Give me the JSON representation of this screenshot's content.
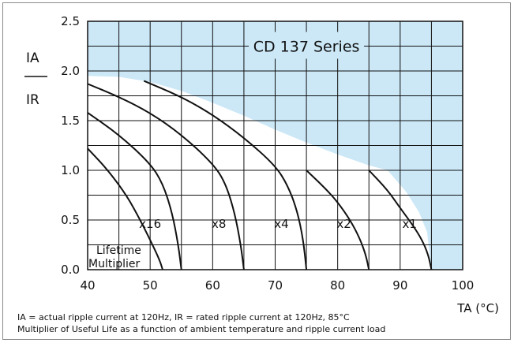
{
  "chart_data": {
    "type": "line",
    "title": "CD 137 Series",
    "ylabel": {
      "top": "IA",
      "bottom": "IR"
    },
    "xlabel": "TA (°C)",
    "xlim": [
      40,
      100
    ],
    "ylim": [
      0.0,
      2.5
    ],
    "x_ticks": [
      "40",
      "50",
      "60",
      "70",
      "80",
      "90",
      "100"
    ],
    "y_ticks": [
      "0.0",
      "0.5",
      "1.0",
      "1.5",
      "2.0",
      "2.5"
    ],
    "grid": true,
    "shaded_region": {
      "description": "area above maximum allowable ripple",
      "color": "#cce8f7"
    },
    "boundary": [
      {
        "x": 40,
        "y": 1.95
      },
      {
        "x": 45,
        "y": 1.94
      },
      {
        "x": 50,
        "y": 1.89
      },
      {
        "x": 55,
        "y": 1.8
      },
      {
        "x": 60,
        "y": 1.68
      },
      {
        "x": 65,
        "y": 1.55
      },
      {
        "x": 70,
        "y": 1.41
      },
      {
        "x": 75,
        "y": 1.28
      },
      {
        "x": 80,
        "y": 1.16
      },
      {
        "x": 85,
        "y": 1.05
      },
      {
        "x": 88,
        "y": 1.0
      },
      {
        "x": 91,
        "y": 0.78
      },
      {
        "x": 93,
        "y": 0.58
      },
      {
        "x": 94.3,
        "y": 0.38
      },
      {
        "x": 95,
        "y": 0.0
      }
    ],
    "series": [
      {
        "name": "x1",
        "points": [
          {
            "x": 85,
            "y": 1.0
          },
          {
            "x": 88,
            "y": 0.8
          },
          {
            "x": 90,
            "y": 0.62
          },
          {
            "x": 92,
            "y": 0.45
          },
          {
            "x": 93.5,
            "y": 0.3
          },
          {
            "x": 94.5,
            "y": 0.15
          },
          {
            "x": 95,
            "y": 0.0
          }
        ]
      },
      {
        "name": "x2",
        "points": [
          {
            "x": 75,
            "y": 1.0
          },
          {
            "x": 78,
            "y": 0.82
          },
          {
            "x": 80,
            "y": 0.68
          },
          {
            "x": 82,
            "y": 0.5
          },
          {
            "x": 83.5,
            "y": 0.32
          },
          {
            "x": 84.5,
            "y": 0.15
          },
          {
            "x": 85,
            "y": 0.0
          }
        ]
      },
      {
        "name": "x4",
        "points": [
          {
            "x": 49,
            "y": 1.9
          },
          {
            "x": 55,
            "y": 1.74
          },
          {
            "x": 60,
            "y": 1.56
          },
          {
            "x": 65,
            "y": 1.33
          },
          {
            "x": 70,
            "y": 1.05
          },
          {
            "x": 72,
            "y": 0.85
          },
          {
            "x": 73.5,
            "y": 0.6
          },
          {
            "x": 74.5,
            "y": 0.3
          },
          {
            "x": 75,
            "y": 0.0
          }
        ]
      },
      {
        "name": "x8",
        "points": [
          {
            "x": 40,
            "y": 1.87
          },
          {
            "x": 45,
            "y": 1.74
          },
          {
            "x": 50,
            "y": 1.58
          },
          {
            "x": 55,
            "y": 1.36
          },
          {
            "x": 60,
            "y": 1.07
          },
          {
            "x": 62,
            "y": 0.88
          },
          {
            "x": 63.5,
            "y": 0.58
          },
          {
            "x": 64.5,
            "y": 0.25
          },
          {
            "x": 65,
            "y": 0.0
          }
        ]
      },
      {
        "name": "x16",
        "points": [
          {
            "x": 40,
            "y": 1.58
          },
          {
            "x": 45,
            "y": 1.36
          },
          {
            "x": 50,
            "y": 1.07
          },
          {
            "x": 52,
            "y": 0.87
          },
          {
            "x": 53.5,
            "y": 0.58
          },
          {
            "x": 54.5,
            "y": 0.25
          },
          {
            "x": 55,
            "y": 0.0
          }
        ]
      },
      {
        "name": "",
        "points": [
          {
            "x": 40,
            "y": 1.22
          },
          {
            "x": 43,
            "y": 1.02
          },
          {
            "x": 46,
            "y": 0.77
          },
          {
            "x": 48,
            "y": 0.55
          },
          {
            "x": 50,
            "y": 0.3
          },
          {
            "x": 51.5,
            "y": 0.1
          },
          {
            "x": 52,
            "y": 0.0
          }
        ]
      }
    ],
    "series_label_positions": [
      {
        "name": "x16",
        "x": 50,
        "y": 0.5
      },
      {
        "name": "x8",
        "x": 61,
        "y": 0.5
      },
      {
        "name": "x4",
        "x": 71,
        "y": 0.5
      },
      {
        "name": "x2",
        "x": 81,
        "y": 0.5
      },
      {
        "name": "x1",
        "x": 91.5,
        "y": 0.5
      }
    ],
    "annotation": {
      "line1": "Lifetime",
      "line2": "Multiplier"
    },
    "notes": [
      "IA = actual ripple current at 120Hz, IR = rated ripple current at 120Hz, 85°C",
      "Multiplier of Useful Life as a function of ambient temperature and ripple current load"
    ]
  }
}
